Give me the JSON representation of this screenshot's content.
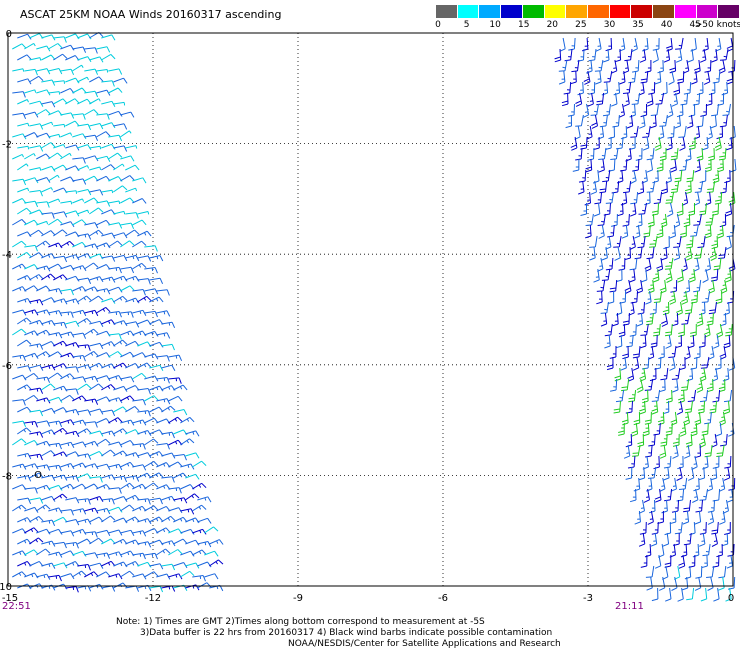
{
  "title": "ASCAT 25KM NOAA Winds 20160317 ascending",
  "legend": {
    "colors": [
      "#666666",
      "#00ffff",
      "#00aaff",
      "#0000cc",
      "#00bb00",
      "#ffff00",
      "#ffa500",
      "#ff6600",
      "#ff0000",
      "#cc0000",
      "#8b4513",
      "#ff00ff",
      "#cc00cc",
      "#660066"
    ],
    "labels": [
      "0",
      "5",
      "10",
      "15",
      "20",
      "25",
      "30",
      "35",
      "40",
      "45",
      ">50 knots"
    ]
  },
  "axes": {
    "x_ticks": [
      "-15",
      "-12",
      "-9",
      "-6",
      "-3",
      "0"
    ],
    "y_ticks": [
      "0",
      "-2",
      "-4",
      "-6",
      "-8",
      "-10"
    ],
    "xlim": [
      -15,
      0
    ],
    "ylim": [
      -10,
      0
    ],
    "grid": "dotted"
  },
  "times": {
    "left": "22:51",
    "right": "21:11"
  },
  "notes": {
    "line1": "Note: 1) Times are GMT 2)Times along bottom correspond to measurement at -5S",
    "line2": "3)Data buffer is 22 hrs from 20160317 4) Black wind barbs indicate possible contamination",
    "line3": "NOAA/NESDIS/Center for Satellite Applications and Research"
  },
  "map_marker": "O",
  "swaths": [
    {
      "name": "west",
      "lon_range": [
        -15,
        -10.2
      ],
      "speed_knots": [
        5,
        15
      ]
    },
    {
      "name": "east",
      "lon_range": [
        -3.7,
        0
      ],
      "speed_knots": [
        10,
        20
      ]
    }
  ]
}
